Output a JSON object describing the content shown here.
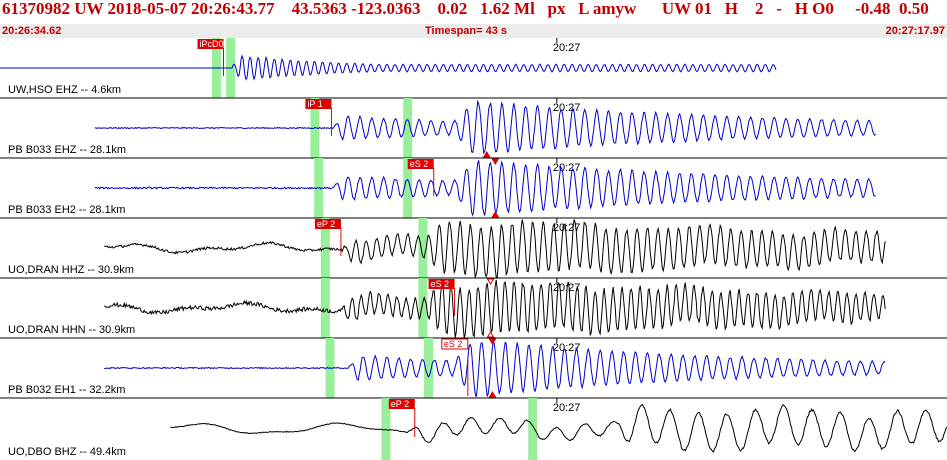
{
  "header": {
    "title": "61370982 UW 2018-05-07 20:26:43.77    43.5363 -123.0363    0.02   1.62 Ml   px   L amyw      UW 01   H    2   -   H O0     -0.48  0.50",
    "start_time": "20:26:34.62",
    "timespan": "Timespan=  43 s",
    "end_time": "20:27:17.97"
  },
  "colors": {
    "title": "#c00000",
    "subbar_bg": "#ececec",
    "trace_blue": "#0000cc",
    "trace_black": "#000000",
    "pick_red": "#e00000",
    "window_green": "#99ee99"
  },
  "time_tick": "20:27",
  "traces": [
    {
      "label": "UW,HSO EHZ -- 4.6km",
      "color": "blue",
      "start": 0.0,
      "end": 0.82,
      "p": 0.245,
      "s": null,
      "noise": 0.0,
      "amp": 1.0,
      "period": 0.0085,
      "decay": 0.12,
      "lowfreq": 0,
      "picks": [
        {
          "label": "iPcD0",
          "t": 0.236,
          "dir": "up"
        }
      ],
      "windows": [
        0.228,
        0.243
      ],
      "markers": []
    },
    {
      "label": "PB B033 EHZ -- 28.1km",
      "color": "blue",
      "start": 0.1,
      "end": 0.925,
      "p": 0.352,
      "s": 0.51,
      "noise": 0.02,
      "amp": 0.9,
      "period": 0.0125,
      "decay": 0.22,
      "lowfreq": 0,
      "picks": [
        {
          "label": "iP 1",
          "t": 0.35,
          "dir": "up"
        }
      ],
      "windows": [
        0.332,
        0.43
      ],
      "markers": [
        {
          "t": 0.514,
          "pos": "bottom",
          "fill": true
        }
      ]
    },
    {
      "label": "PB B033 EH2 -- 28.1km",
      "color": "blue",
      "start": 0.1,
      "end": 0.925,
      "p": 0.352,
      "s": 0.51,
      "noise": 0.03,
      "amp": 0.9,
      "period": 0.0125,
      "decay": 0.25,
      "lowfreq": 0,
      "picks": [
        {
          "label": "eS 2",
          "t": 0.458,
          "dir": "up"
        }
      ],
      "windows": [
        0.336,
        0.43
      ],
      "markers": [
        {
          "t": 0.523,
          "pos": "top",
          "fill": true
        },
        {
          "t": 0.523,
          "pos": "bottom",
          "fill": true
        }
      ]
    },
    {
      "label": "UO,DRAN HHZ -- 30.9km",
      "color": "black",
      "start": 0.11,
      "end": 0.935,
      "p": 0.362,
      "s": 0.48,
      "noise": 0.05,
      "amp": 0.85,
      "period": 0.011,
      "decay": 0.5,
      "lowfreq": 1,
      "picks": [
        {
          "label": "eP 2",
          "t": 0.36,
          "dir": "up"
        }
      ],
      "windows": [
        0.343,
        0.446
      ],
      "markers": []
    },
    {
      "label": "UO,DRAN HHN -- 30.9km",
      "color": "black",
      "start": 0.11,
      "end": 0.935,
      "p": 0.36,
      "s": 0.48,
      "noise": 0.08,
      "amp": 0.85,
      "period": 0.0095,
      "decay": 0.45,
      "lowfreq": 1,
      "picks": [
        {
          "label": "eS 2",
          "t": 0.48,
          "dir": "up"
        }
      ],
      "windows": [
        0.343,
        0.446
      ],
      "markers": [
        {
          "t": 0.518,
          "pos": "top",
          "fill": false
        },
        {
          "t": 0.518,
          "pos": "bottom",
          "fill": false
        }
      ]
    },
    {
      "label": "PB B032 EH1 -- 32.2km",
      "color": "blue",
      "start": 0.11,
      "end": 0.935,
      "p": 0.368,
      "s": 0.51,
      "noise": 0.02,
      "amp": 0.95,
      "period": 0.0125,
      "decay": 0.2,
      "lowfreq": 0,
      "picks": [
        {
          "label": "eS 2",
          "t": 0.494,
          "dir": "down"
        }
      ],
      "windows": [
        0.348,
        0.452
      ],
      "markers": [
        {
          "t": 0.52,
          "pos": "top",
          "fill": true
        },
        {
          "t": 0.52,
          "pos": "bottom",
          "fill": true
        }
      ]
    },
    {
      "label": "UO,DBO BHZ -- 49.4km",
      "color": "black",
      "start": 0.18,
      "end": 1.0,
      "p": 0.43,
      "s": 0.68,
      "noise": 0.02,
      "amp": 0.6,
      "period": 0.03,
      "decay": 0.9,
      "lowfreq": 2,
      "picks": [
        {
          "label": "eP 2",
          "t": 0.438,
          "dir": "up"
        }
      ],
      "windows": [
        0.407,
        0.562
      ],
      "markers": []
    }
  ]
}
